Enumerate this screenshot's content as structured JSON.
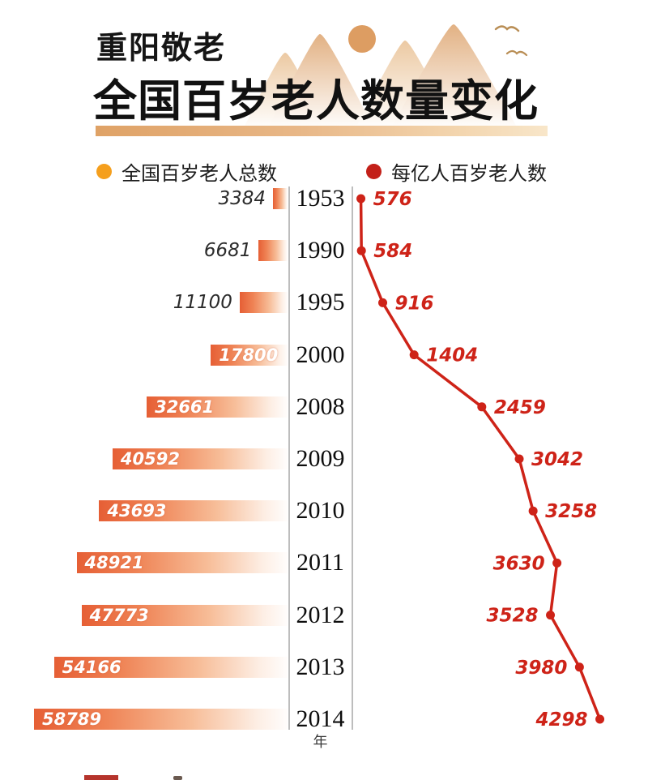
{
  "header": {
    "kicker": "重阳敬老",
    "title": "全国百岁老人数量变化"
  },
  "legend": {
    "bar_series": {
      "label": "全国百岁老人总数",
      "color": "#f59f1d"
    },
    "line_series": {
      "label": "每亿人百岁老人数",
      "color": "#c32019"
    }
  },
  "chart_data": {
    "type": "bar+line",
    "title": "全国百岁老人数量变化",
    "orientation": "horizontal rows, years in a center column",
    "categories": [
      "1953",
      "1990",
      "1995",
      "2000",
      "2008",
      "2009",
      "2010",
      "2011",
      "2012",
      "2013",
      "2014"
    ],
    "category_axis_label": "年",
    "legend_position": "top",
    "grid": false,
    "series": [
      {
        "name": "全国百岁老人总数",
        "type": "bar",
        "color_gradient": [
          "#e65f35",
          "#fffdfc"
        ],
        "values": [
          3384,
          6681,
          11100,
          17800,
          32661,
          40592,
          43693,
          48921,
          47773,
          54166,
          58789
        ]
      },
      {
        "name": "每亿人百岁老人数",
        "type": "line",
        "color": "#ce2318",
        "values": [
          576,
          584,
          916,
          1404,
          2459,
          3042,
          3258,
          3630,
          3528,
          3980,
          4298
        ],
        "label_side": [
          "right",
          "right",
          "right",
          "right",
          "right",
          "right",
          "right",
          "left",
          "left",
          "left",
          "left"
        ]
      }
    ],
    "bar_value_range": [
      0,
      60000
    ],
    "line_value_range": [
      449,
      4300
    ]
  }
}
